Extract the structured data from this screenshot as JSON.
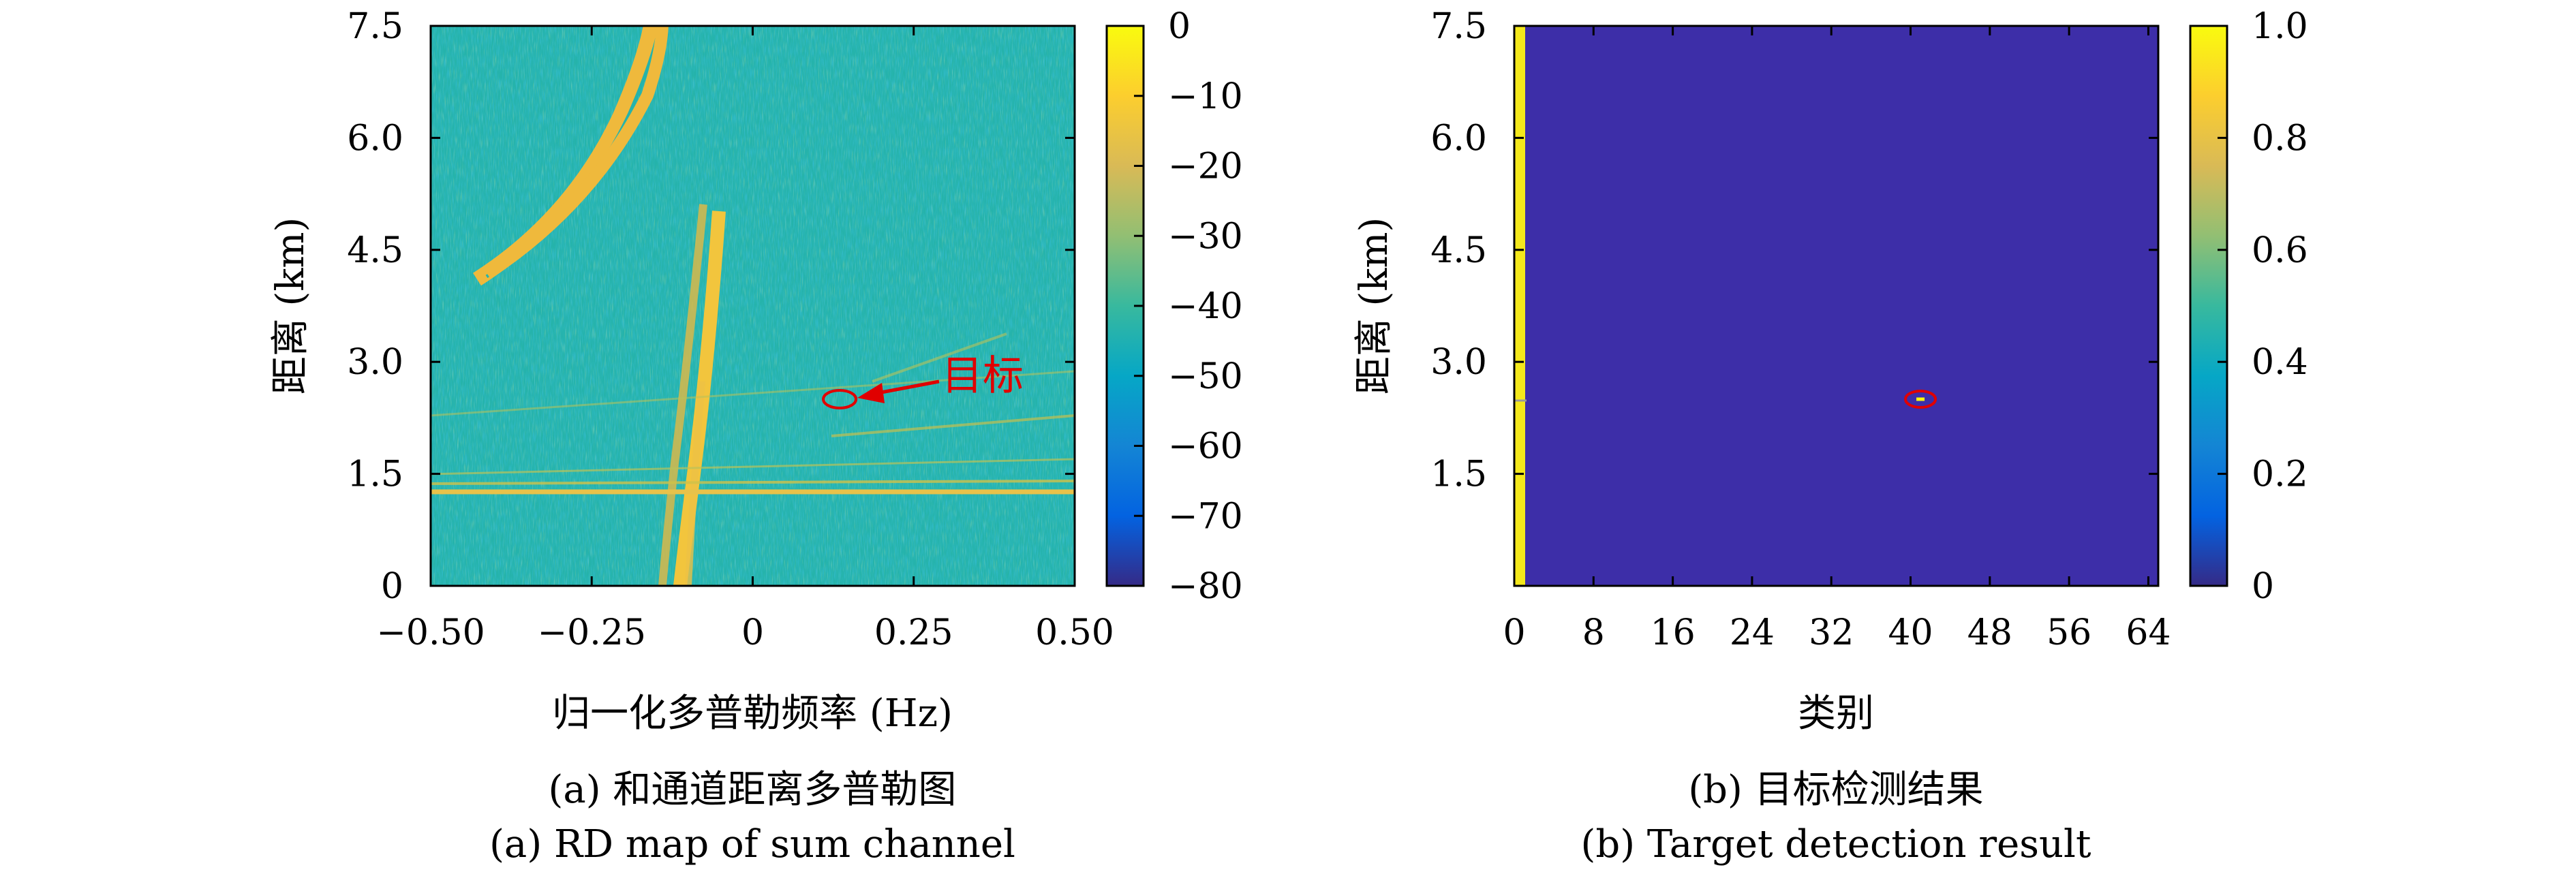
{
  "chart_data": [
    {
      "type": "heatmap",
      "panel": "a",
      "xlabel": "归一化多普勒频率 (Hz)",
      "ylabel": "距离 (km)",
      "xlim": [
        -0.5,
        0.5
      ],
      "ylim": [
        0,
        7.5
      ],
      "xticks": [
        "−0.50",
        "−0.25",
        "0",
        "0.25",
        "0.50"
      ],
      "xtick_values": [
        -0.5,
        -0.25,
        0,
        0.25,
        0.5
      ],
      "yticks": [
        "0",
        "1.5",
        "3.0",
        "4.5",
        "6.0",
        "7.5"
      ],
      "ytick_values": [
        0,
        1.5,
        3.0,
        4.5,
        6.0,
        7.5
      ],
      "colorbar": {
        "range": [
          -80,
          0
        ],
        "ticks": [
          "0",
          "−10",
          "−20",
          "−30",
          "−40",
          "−50",
          "−60",
          "−70",
          "−80"
        ],
        "tick_values": [
          0,
          -10,
          -20,
          -30,
          -40,
          -50,
          -60,
          -70,
          -80
        ]
      },
      "annotation": {
        "text": "目标",
        "target": {
          "x": 0.135,
          "y": 2.5
        }
      },
      "caption_cn": "(a) 和通道距离多普勒图",
      "caption_en": "(a) RD map of sum channel"
    },
    {
      "type": "heatmap",
      "panel": "b",
      "xlabel": "类别",
      "ylabel": "距离 (km)",
      "xlim": [
        0,
        65
      ],
      "ylim": [
        0,
        7.5
      ],
      "xticks": [
        "0",
        "8",
        "16",
        "24",
        "32",
        "40",
        "48",
        "56",
        "64"
      ],
      "xtick_values": [
        0,
        8,
        16,
        24,
        32,
        40,
        48,
        56,
        64
      ],
      "yticks": [
        "1.5",
        "3.0",
        "4.5",
        "6.0",
        "7.5"
      ],
      "ytick_values": [
        1.5,
        3.0,
        4.5,
        6.0,
        7.5
      ],
      "colorbar": {
        "range": [
          0,
          1
        ],
        "ticks": [
          "1.0",
          "0.8",
          "0.6",
          "0.4",
          "0.2",
          "0"
        ],
        "tick_values": [
          1.0,
          0.8,
          0.6,
          0.4,
          0.2,
          0
        ]
      },
      "detection": {
        "category": 41,
        "range_km": 2.5,
        "value": 1
      },
      "caption_cn": "(b) 目标检测结果",
      "caption_en": "(b) Target detection result"
    }
  ],
  "colors": {
    "background_a": "#25b3ab",
    "background_b": "#3d2ea8",
    "strong": "#f2c53d",
    "target_marker": "#e00000"
  }
}
